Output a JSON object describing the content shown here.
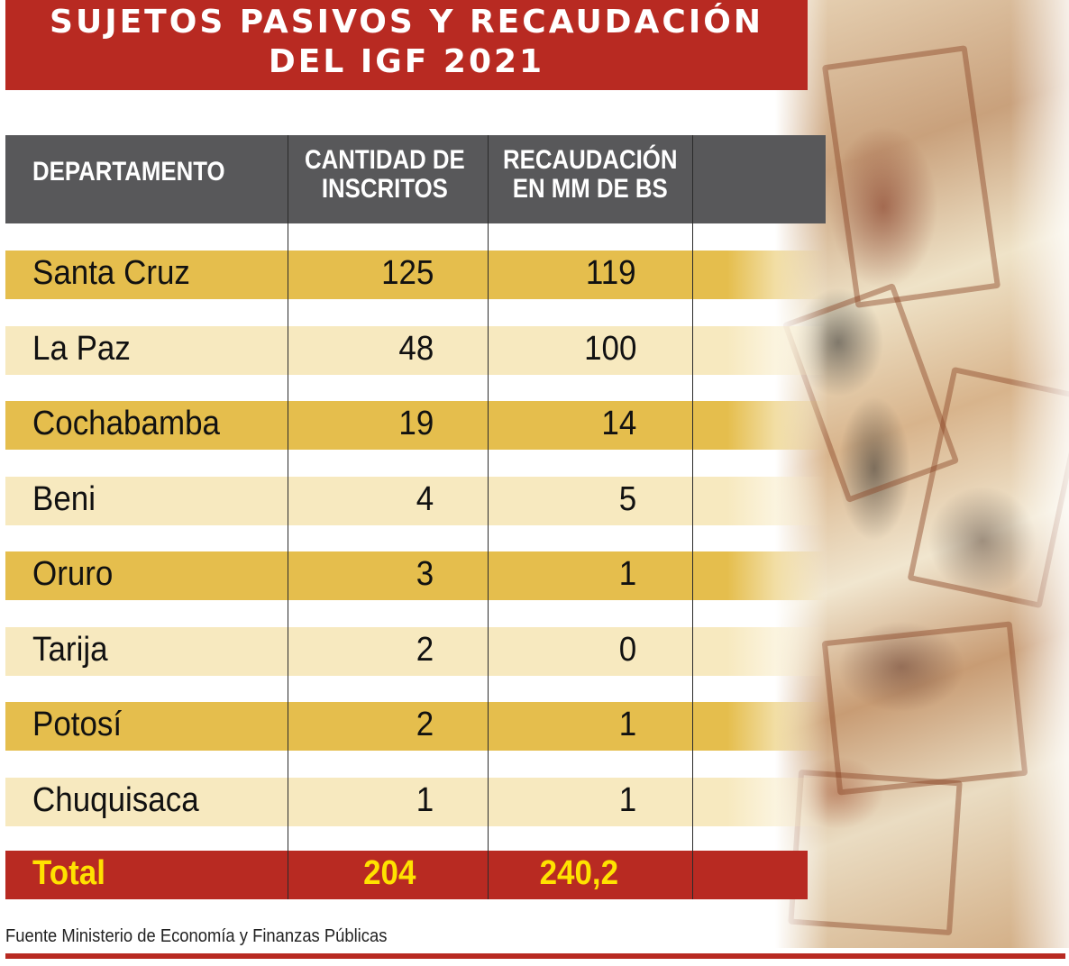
{
  "title": {
    "line1": "SUJETOS PASIVOS Y RECAUDACIÓN",
    "line2": "DEL IGF 2021"
  },
  "colors": {
    "title_bg": "#b82a22",
    "header_bg": "#58585a",
    "row_dark": "#e5be4d",
    "row_light": "#f7e9bf",
    "total_text": "#ffe200"
  },
  "chart_data": {
    "type": "table",
    "columns": [
      "DEPARTAMENTO",
      "CANTIDAD DE\nINSCRITOS",
      "RECAUDACIÓN\nEN MM DE BS"
    ],
    "rows": [
      {
        "departamento": "Santa Cruz",
        "inscritos": "125",
        "recaudacion": "119"
      },
      {
        "departamento": "La Paz",
        "inscritos": "48",
        "recaudacion": "100"
      },
      {
        "departamento": "Cochabamba",
        "inscritos": "19",
        "recaudacion": "14"
      },
      {
        "departamento": "Beni",
        "inscritos": "4",
        "recaudacion": "5"
      },
      {
        "departamento": "Oruro",
        "inscritos": "3",
        "recaudacion": "1"
      },
      {
        "departamento": "Tarija",
        "inscritos": "2",
        "recaudacion": "0"
      },
      {
        "departamento": "Potosí",
        "inscritos": "2",
        "recaudacion": "1"
      },
      {
        "departamento": "Chuquisaca",
        "inscritos": "1",
        "recaudacion": "1"
      }
    ],
    "total": {
      "label": "Total",
      "inscritos": "204",
      "recaudacion": "240,2"
    }
  },
  "source": "Fuente Ministerio de Economía y Finanzas Públicas"
}
